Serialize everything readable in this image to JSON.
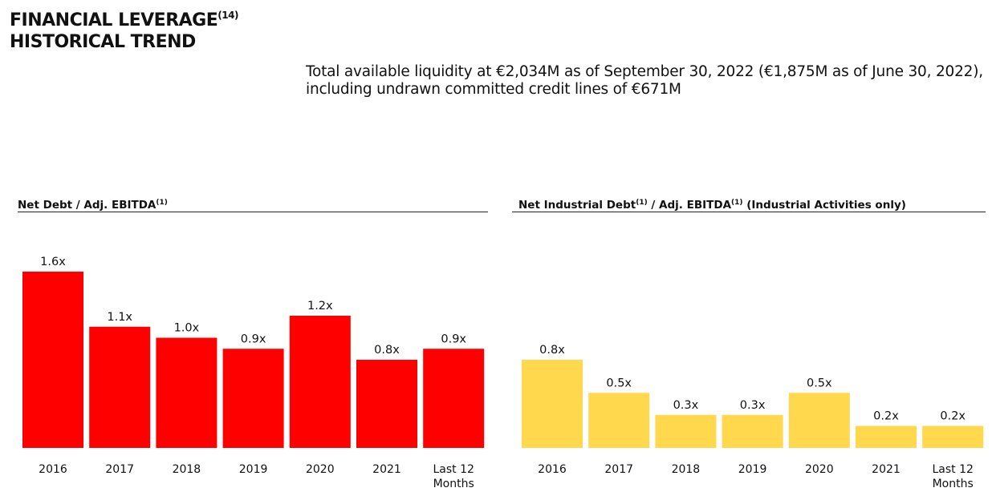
{
  "header": {
    "title_line1": "FINANCIAL LEVERAGE",
    "title_sup": "(14)",
    "title_line2": "HISTORICAL TREND",
    "liquidity_note": "Total available liquidity at €2,034M as of September 30, 2022 (€1,875M as of June 30, 2022), including undrawn committed credit lines of €671M"
  },
  "panels": {
    "left_title_a": "Net Debt / Adj. EBITDA",
    "left_title_sup": "(1)",
    "right_title_a": "Net Industrial Debt",
    "right_title_sup1": "(1)",
    "right_title_b": " / Adj. EBITDA",
    "right_title_sup2": "(1)",
    "right_title_c": " (Industrial Activities only)"
  },
  "chart_data": [
    {
      "type": "bar",
      "title": "Net Debt / Adj. EBITDA(1)",
      "categories": [
        "2016",
        "2017",
        "2018",
        "2019",
        "2020",
        "2021",
        "Last 12 Months"
      ],
      "values": [
        1.6,
        1.1,
        1.0,
        0.9,
        1.2,
        0.8,
        0.9
      ],
      "labels": [
        "1.6x",
        "1.1x",
        "1.0x",
        "0.9x",
        "1.2x",
        "0.8x",
        "0.9x"
      ],
      "color": "#FF0000",
      "xlabel": "",
      "ylabel": "",
      "ylim": [
        0,
        1.6
      ]
    },
    {
      "type": "bar",
      "title": "Net Industrial Debt(1) / Adj. EBITDA(1) (Industrial Activities only)",
      "categories": [
        "2016",
        "2017",
        "2018",
        "2019",
        "2020",
        "2021",
        "Last 12 Months"
      ],
      "values": [
        0.8,
        0.5,
        0.3,
        0.3,
        0.5,
        0.2,
        0.2
      ],
      "labels": [
        "0.8x",
        "0.5x",
        "0.3x",
        "0.3x",
        "0.5x",
        "0.2x",
        "0.2x"
      ],
      "color": "#FFD84D",
      "xlabel": "",
      "ylabel": "",
      "ylim": [
        0,
        1.6
      ]
    }
  ]
}
